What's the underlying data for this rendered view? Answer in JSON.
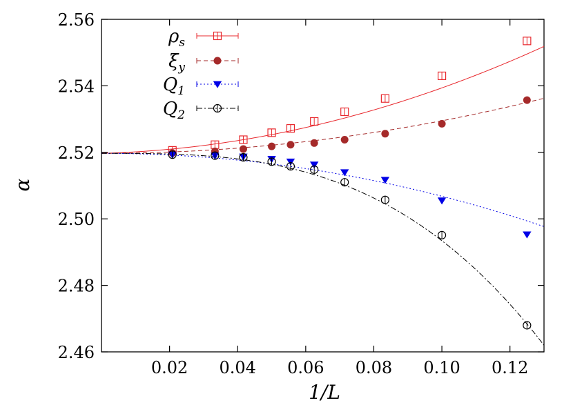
{
  "chart_data": {
    "type": "scatter",
    "xlabel": "1/L",
    "ylabel": "α",
    "xlim": [
      0,
      0.13
    ],
    "ylim": [
      2.46,
      2.56
    ],
    "xticks": [
      0.02,
      0.04,
      0.06,
      0.08,
      0.1,
      0.12
    ],
    "xtick_labels": [
      "0.02",
      "0.04",
      "0.06",
      "0.08",
      "0.10",
      "0.12"
    ],
    "yticks": [
      2.46,
      2.48,
      2.5,
      2.52,
      2.54,
      2.56
    ],
    "ytick_labels": [
      "2.46",
      "2.48",
      "2.50",
      "2.52",
      "2.54",
      "2.56"
    ],
    "grid": false,
    "legend_position": "top-left",
    "fit_intercept": 2.5197,
    "series": [
      {
        "name": "ρ_s",
        "label_main": "ρ",
        "label_sub": "s",
        "marker": "open-square",
        "color": "#e8282d",
        "line": "solid",
        "x": [
          0.02083,
          0.03333,
          0.04167,
          0.05,
          0.05556,
          0.0625,
          0.07143,
          0.08333,
          0.1,
          0.125
        ],
        "y": [
          2.5206,
          2.5223,
          2.5238,
          2.5259,
          2.5272,
          2.5293,
          2.5322,
          2.5362,
          2.543,
          2.5535
        ],
        "fit_coeffs": [
          0.0283,
          1.685,
          0.0
        ]
      },
      {
        "name": "ξ_y",
        "label_main": "ξ",
        "label_sub": "y",
        "marker": "filled-circle",
        "color": "#a52a2a",
        "line": "dashed",
        "x": [
          0.02083,
          0.03333,
          0.04167,
          0.05,
          0.05556,
          0.0625,
          0.07143,
          0.08333,
          0.1,
          0.125
        ],
        "y": [
          2.5198,
          2.5203,
          2.521,
          2.5218,
          2.5223,
          2.5228,
          2.5238,
          2.5256,
          2.5286,
          2.5357
        ],
        "fit_coeffs": [
          0.0,
          0.9792,
          0.0
        ]
      },
      {
        "name": "Q_1",
        "label_main": "Q",
        "label_sub": "1",
        "marker": "filled-triangle-down",
        "color": "#0000e6",
        "line": "dotted",
        "x": [
          0.02083,
          0.03333,
          0.04167,
          0.05,
          0.05556,
          0.0625,
          0.07143,
          0.08333,
          0.1,
          0.125
        ],
        "y": [
          2.5193,
          2.519,
          2.5187,
          2.518,
          2.5172,
          2.5163,
          2.514,
          2.5117,
          2.5055,
          2.4953
        ],
        "fit_coeffs": [
          0.0,
          -1.248,
          -0.4224
        ]
      },
      {
        "name": "Q_2",
        "label_main": "Q",
        "label_sub": "2",
        "marker": "open-circle",
        "color": "#000000",
        "line": "dashdot",
        "x": [
          0.02083,
          0.03333,
          0.04167,
          0.05,
          0.05556,
          0.0625,
          0.07143,
          0.08333,
          0.1,
          0.125
        ],
        "y": [
          2.5193,
          2.519,
          2.5185,
          2.5172,
          2.5158,
          2.5148,
          2.511,
          2.5057,
          2.4951,
          2.468
        ],
        "fit_coeffs": [
          0.0,
          0.0,
          -26.27
        ]
      }
    ]
  }
}
